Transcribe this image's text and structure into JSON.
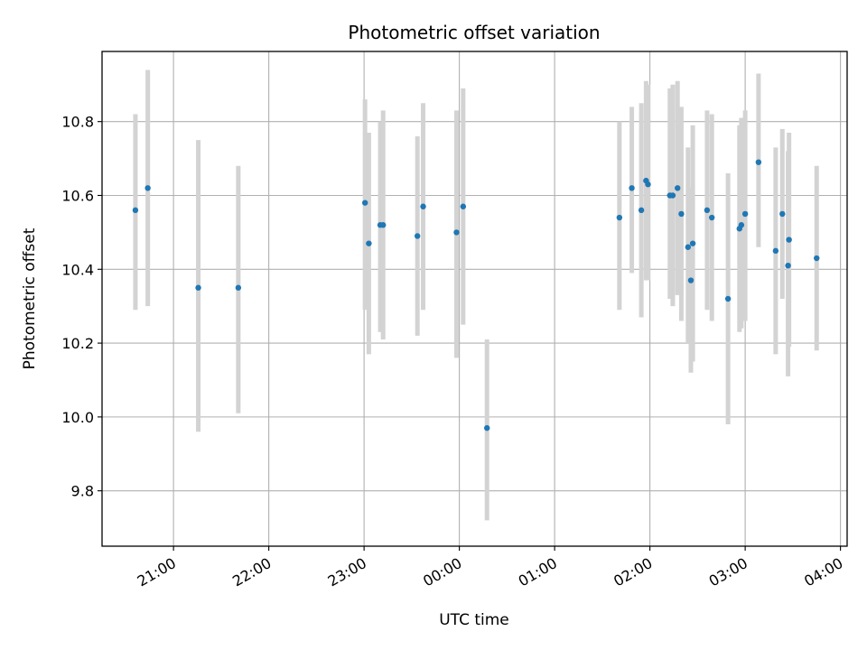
{
  "chart_data": {
    "type": "scatter",
    "title": "Photometric offset variation",
    "xlabel": "UTC time",
    "ylabel": "Photometric offset",
    "x_unit": "hours",
    "xlim": [
      20.25,
      28.07
    ],
    "ylim": [
      9.65,
      10.99
    ],
    "xticks": [
      {
        "value": 21,
        "label": "21:00"
      },
      {
        "value": 22,
        "label": "22:00"
      },
      {
        "value": 23,
        "label": "23:00"
      },
      {
        "value": 24,
        "label": "00:00"
      },
      {
        "value": 25,
        "label": "01:00"
      },
      {
        "value": 26,
        "label": "02:00"
      },
      {
        "value": 27,
        "label": "03:00"
      },
      {
        "value": 28,
        "label": "04:00"
      }
    ],
    "yticks": [
      {
        "value": 9.8,
        "label": "9.8"
      },
      {
        "value": 10.0,
        "label": "10.0"
      },
      {
        "value": 10.2,
        "label": "10.2"
      },
      {
        "value": 10.4,
        "label": "10.4"
      },
      {
        "value": 10.6,
        "label": "10.6"
      },
      {
        "value": 10.8,
        "label": "10.8"
      }
    ],
    "grid": true,
    "colors": {
      "point": "#1f77b4",
      "errorbar": "#d3d3d3",
      "grid": "#b0b0b0"
    },
    "series": [
      {
        "points": [
          {
            "x": 20.6,
            "y": 10.56,
            "ylow": 10.29,
            "yhigh": 10.82
          },
          {
            "x": 20.73,
            "y": 10.62,
            "ylow": 10.3,
            "yhigh": 10.94
          },
          {
            "x": 21.26,
            "y": 10.35,
            "ylow": 9.96,
            "yhigh": 10.75
          },
          {
            "x": 21.68,
            "y": 10.35,
            "ylow": 10.01,
            "yhigh": 10.68
          },
          {
            "x": 23.01,
            "y": 10.58,
            "ylow": 10.29,
            "yhigh": 10.86
          },
          {
            "x": 23.05,
            "y": 10.47,
            "ylow": 10.17,
            "yhigh": 10.77
          },
          {
            "x": 23.17,
            "y": 10.52,
            "ylow": 10.23,
            "yhigh": 10.8
          },
          {
            "x": 23.2,
            "y": 10.52,
            "ylow": 10.21,
            "yhigh": 10.83
          },
          {
            "x": 23.56,
            "y": 10.49,
            "ylow": 10.22,
            "yhigh": 10.76
          },
          {
            "x": 23.62,
            "y": 10.57,
            "ylow": 10.29,
            "yhigh": 10.85
          },
          {
            "x": 23.97,
            "y": 10.5,
            "ylow": 10.16,
            "yhigh": 10.83
          },
          {
            "x": 24.04,
            "y": 10.57,
            "ylow": 10.25,
            "yhigh": 10.89
          },
          {
            "x": 24.29,
            "y": 9.97,
            "ylow": 9.72,
            "yhigh": 10.21
          },
          {
            "x": 25.68,
            "y": 10.54,
            "ylow": 10.29,
            "yhigh": 10.8
          },
          {
            "x": 25.81,
            "y": 10.62,
            "ylow": 10.39,
            "yhigh": 10.84
          },
          {
            "x": 25.91,
            "y": 10.56,
            "ylow": 10.27,
            "yhigh": 10.85
          },
          {
            "x": 25.96,
            "y": 10.64,
            "ylow": 10.37,
            "yhigh": 10.91
          },
          {
            "x": 25.98,
            "y": 10.63,
            "ylow": 10.37,
            "yhigh": 10.9
          },
          {
            "x": 26.21,
            "y": 10.6,
            "ylow": 10.32,
            "yhigh": 10.89
          },
          {
            "x": 26.24,
            "y": 10.6,
            "ylow": 10.3,
            "yhigh": 10.9
          },
          {
            "x": 26.29,
            "y": 10.62,
            "ylow": 10.33,
            "yhigh": 10.91
          },
          {
            "x": 26.33,
            "y": 10.55,
            "ylow": 10.26,
            "yhigh": 10.84
          },
          {
            "x": 26.4,
            "y": 10.46,
            "ylow": 10.2,
            "yhigh": 10.73
          },
          {
            "x": 26.43,
            "y": 10.37,
            "ylow": 10.12,
            "yhigh": 10.62
          },
          {
            "x": 26.45,
            "y": 10.47,
            "ylow": 10.15,
            "yhigh": 10.79
          },
          {
            "x": 26.6,
            "y": 10.56,
            "ylow": 10.29,
            "yhigh": 10.83
          },
          {
            "x": 26.65,
            "y": 10.54,
            "ylow": 10.26,
            "yhigh": 10.82
          },
          {
            "x": 26.82,
            "y": 10.32,
            "ylow": 9.98,
            "yhigh": 10.66
          },
          {
            "x": 26.94,
            "y": 10.51,
            "ylow": 10.23,
            "yhigh": 10.79
          },
          {
            "x": 26.96,
            "y": 10.52,
            "ylow": 10.24,
            "yhigh": 10.81
          },
          {
            "x": 27.0,
            "y": 10.55,
            "ylow": 10.26,
            "yhigh": 10.83
          },
          {
            "x": 27.14,
            "y": 10.69,
            "ylow": 10.46,
            "yhigh": 10.93
          },
          {
            "x": 27.32,
            "y": 10.45,
            "ylow": 10.17,
            "yhigh": 10.73
          },
          {
            "x": 27.39,
            "y": 10.55,
            "ylow": 10.32,
            "yhigh": 10.78
          },
          {
            "x": 27.45,
            "y": 10.41,
            "ylow": 10.11,
            "yhigh": 10.72
          },
          {
            "x": 27.46,
            "y": 10.48,
            "ylow": 10.19,
            "yhigh": 10.77
          },
          {
            "x": 27.75,
            "y": 10.43,
            "ylow": 10.18,
            "yhigh": 10.68
          }
        ]
      }
    ]
  }
}
